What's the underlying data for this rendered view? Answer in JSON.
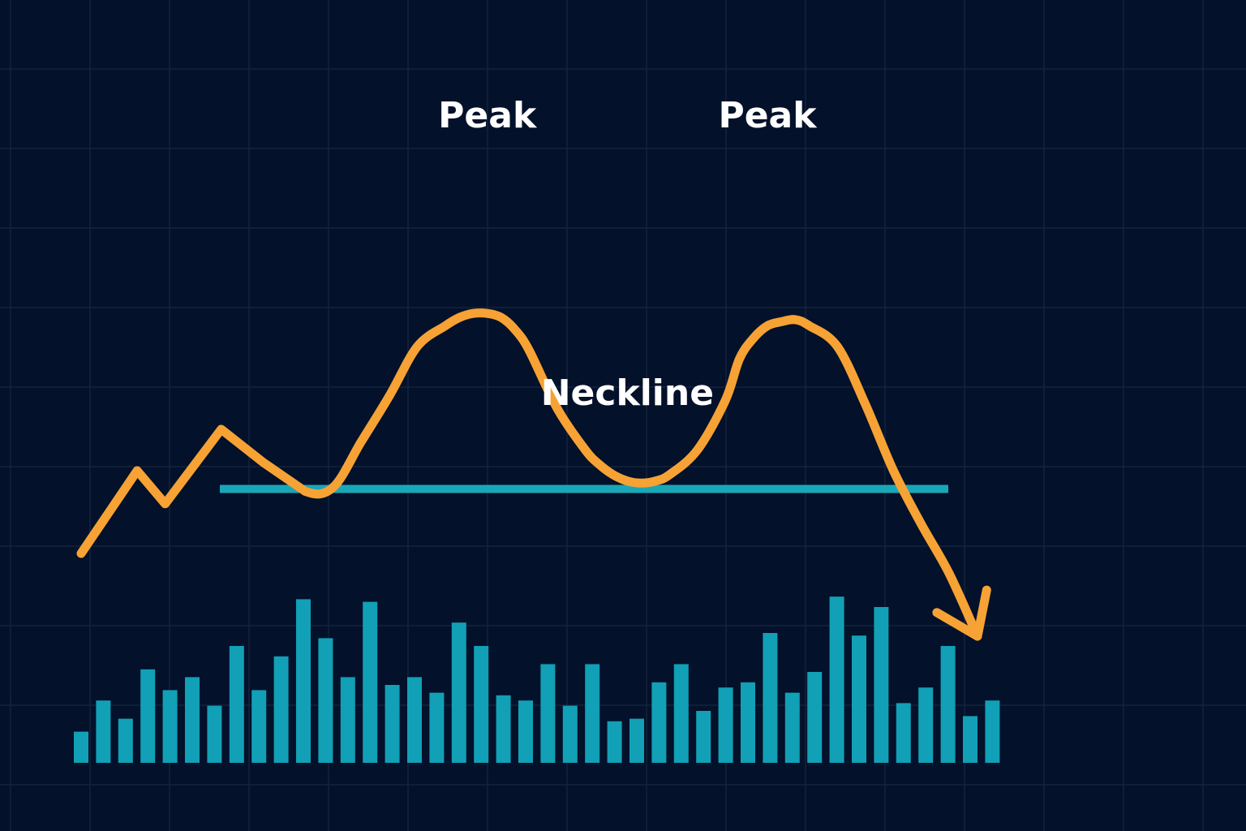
{
  "chart_data": {
    "type": "line",
    "pattern": "double top",
    "title": "",
    "xlabel": "",
    "ylabel": "",
    "grid": true,
    "axes_visible": false,
    "ylim": [
      0,
      100
    ],
    "volume_ylim": [
      0,
      100
    ],
    "colors": {
      "background": "#03112a",
      "grid": "#15233d",
      "price_line": "#f7a234",
      "neckline": "#19a7b8",
      "volume_bars": "#11a0b6",
      "annotation_text": "#ffffff"
    },
    "annotations": [
      {
        "label": "Peak",
        "x": 14.5
      },
      {
        "label": "Peak",
        "x": 24.5
      },
      {
        "label": "Neckline",
        "x": 19.5
      }
    ],
    "neckline": {
      "y": 60.6,
      "x_start": 5,
      "x_end": 29
    },
    "price_series": {
      "name": "",
      "x": [
        0,
        2,
        3,
        5,
        6.5,
        8,
        9,
        10,
        11,
        12,
        13,
        13.5,
        14,
        14.5,
        15,
        15.5,
        16,
        17,
        18,
        18.5,
        19,
        19.5,
        20,
        20.5,
        21,
        22,
        23,
        23.5,
        24,
        24.5,
        25,
        25.5,
        26,
        27,
        28,
        29,
        30,
        31,
        32
      ],
      "y": [
        45,
        65,
        57,
        75,
        67,
        60,
        61,
        72,
        83,
        95,
        100,
        102,
        103,
        103,
        102,
        99,
        94,
        80,
        70,
        66.5,
        64,
        62.5,
        62,
        62.5,
        64,
        70,
        82,
        92,
        97,
        100,
        101,
        101.5,
        100,
        95,
        81,
        65,
        52,
        40,
        25
      ],
      "arrow_end": true
    },
    "volume_series": {
      "name": "",
      "x": [
        0,
        1,
        2,
        3,
        4,
        5,
        6,
        7,
        8,
        9,
        10,
        11,
        12,
        13,
        14,
        15,
        16,
        17,
        18,
        19,
        20,
        21,
        22,
        23,
        24,
        25,
        26,
        27,
        28,
        29,
        30,
        31,
        32,
        33,
        34,
        35,
        36,
        37,
        38,
        39,
        40,
        41
      ],
      "values": [
        12,
        24,
        17,
        36,
        28,
        33,
        22,
        45,
        28,
        41,
        63,
        48,
        33,
        62,
        30,
        33,
        27,
        54,
        45,
        26,
        24,
        38,
        22,
        38,
        16,
        17,
        31,
        38,
        20,
        29,
        31,
        50,
        27,
        35,
        64,
        49,
        60,
        23,
        29,
        45,
        18,
        24
      ]
    }
  }
}
